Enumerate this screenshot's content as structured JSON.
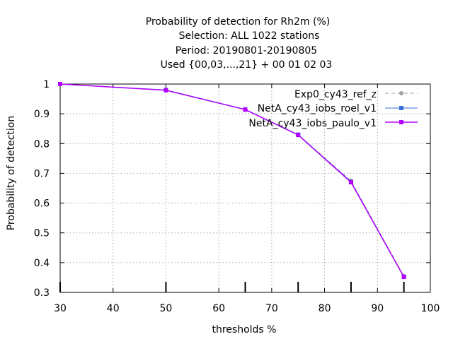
{
  "chart_data": {
    "type": "line",
    "title_lines": [
      "Probability of detection  for Rh2m (%)",
      "Selection: ALL    1022 stations",
      "Period: 20190801-20190805",
      "Used {00,03,...,21} + 00 01 02 03"
    ],
    "xlabel": "thresholds %",
    "ylabel": "Probability of detection",
    "xlim": [
      30,
      100
    ],
    "ylim": [
      0.3,
      1.0
    ],
    "xticks": [
      30,
      40,
      50,
      60,
      70,
      80,
      90,
      100
    ],
    "yticks": [
      0.3,
      0.4,
      0.5,
      0.6,
      0.7,
      0.8,
      0.9,
      1.0
    ],
    "xtick_labels": [
      "30",
      "40",
      "50",
      "60",
      "70",
      "80",
      "90",
      "100"
    ],
    "ytick_labels": [
      "0.3",
      "0.4",
      "0.5",
      "0.6",
      "0.7",
      "0.8",
      "0.9",
      "1"
    ],
    "x": [
      30,
      50,
      65,
      75,
      85,
      95
    ],
    "grid": true,
    "legend_position": "top-right",
    "series": [
      {
        "name": "Exp0_cy43_ref_z",
        "color": "#a0a0a0",
        "dash": "dashed",
        "marker": "circle",
        "values": [
          1.0,
          0.98,
          0.915,
          0.83,
          0.675,
          0.355
        ]
      },
      {
        "name": "NetA_cy43_iobs_roel_v1",
        "color": "#3a6fd8",
        "dash": "solid",
        "marker": "square",
        "values": [
          1.0,
          0.98,
          0.915,
          0.83,
          0.672,
          0.353
        ]
      },
      {
        "name": "NetA_cy43_iobs_paulo_v1",
        "color": "#b400ff",
        "dash": "solid",
        "marker": "square",
        "values": [
          1.0,
          0.979,
          0.914,
          0.829,
          0.67,
          0.352
        ]
      }
    ],
    "threshold_marks": [
      30,
      50,
      65,
      75,
      85,
      95
    ]
  }
}
